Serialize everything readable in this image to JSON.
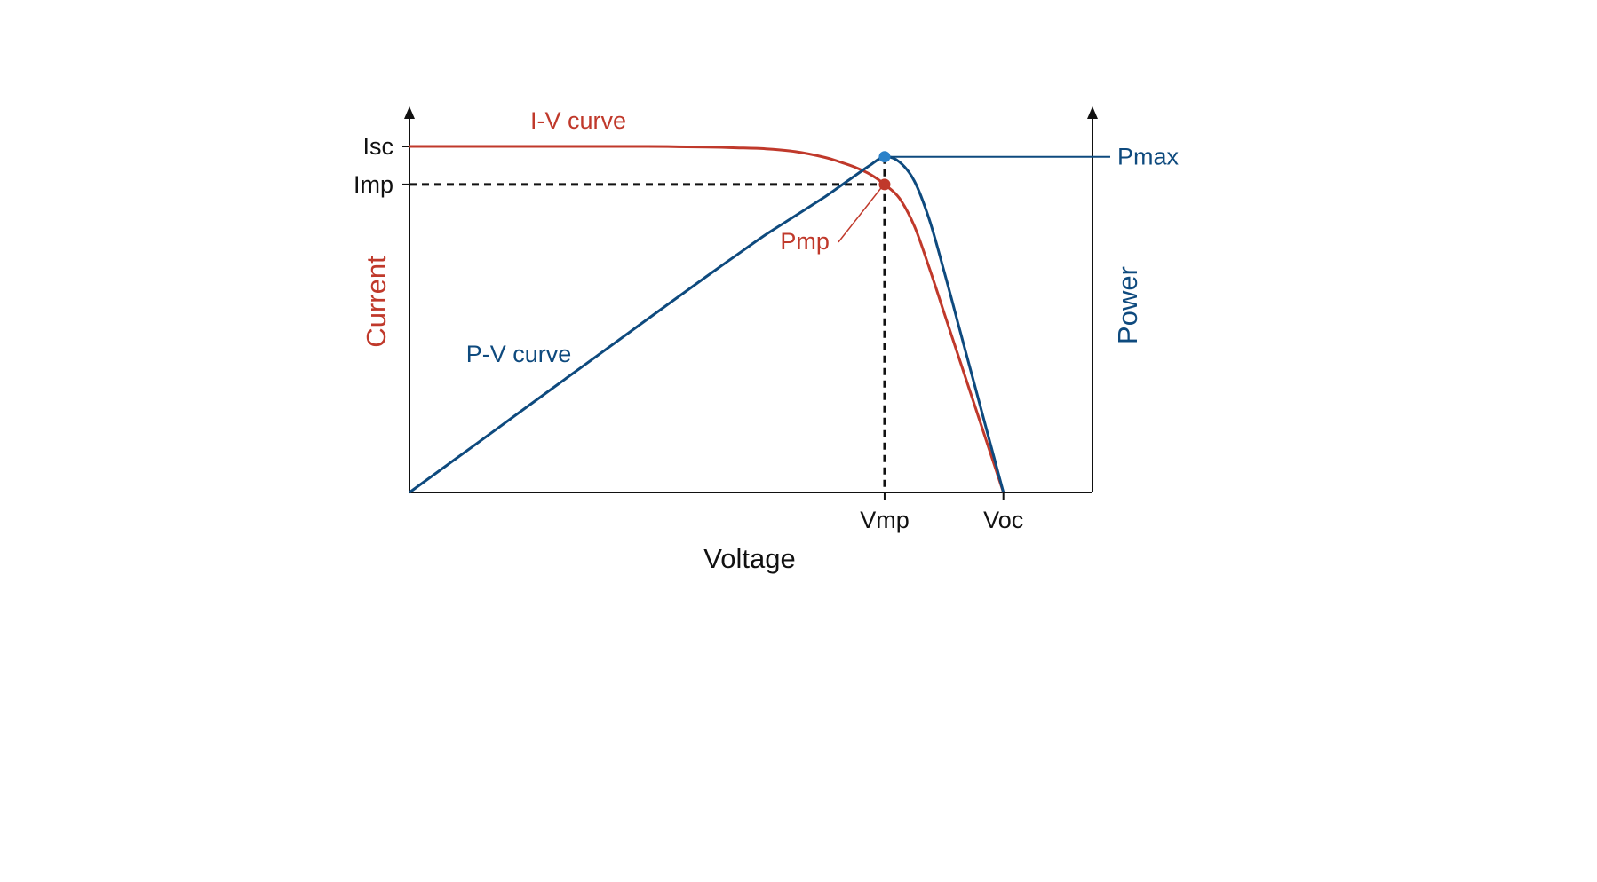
{
  "chart_data": {
    "type": "line",
    "title": "",
    "xlabel": "Voltage",
    "ylabel_left": "Current",
    "ylabel_right": "Power",
    "xlim": [
      0,
      1.15
    ],
    "ylim_current": [
      0,
      1.0
    ],
    "ylim_power": [
      0,
      1.0
    ],
    "grid": false,
    "legend": "none",
    "x_ticks": [
      {
        "label": "Vmp",
        "value": 0.8
      },
      {
        "label": "Voc",
        "value": 1.0
      }
    ],
    "y_ticks": [
      {
        "label": "Isc",
        "value": 1.0
      },
      {
        "label": "Imp",
        "value": 0.89
      }
    ],
    "series": [
      {
        "name": "I-V curve",
        "axis": "left",
        "color": "#c0392b",
        "x": [
          0,
          0.1,
          0.2,
          0.3,
          0.4,
          0.5,
          0.55,
          0.6,
          0.65,
          0.7,
          0.725,
          0.75,
          0.775,
          0.8,
          0.825,
          0.85,
          0.875,
          0.9,
          0.925,
          0.95,
          0.975,
          1.0
        ],
        "values": [
          1.0,
          1.0,
          1.0,
          1.0,
          1.0,
          0.998,
          0.996,
          0.993,
          0.985,
          0.968,
          0.955,
          0.94,
          0.92,
          0.89,
          0.85,
          0.77,
          0.65,
          0.52,
          0.39,
          0.26,
          0.13,
          0.0
        ]
      },
      {
        "name": "P-V curve",
        "axis": "right",
        "color": "#0e4a7e",
        "x": [
          0,
          0.1,
          0.2,
          0.3,
          0.4,
          0.5,
          0.55,
          0.6,
          0.65,
          0.7,
          0.725,
          0.75,
          0.775,
          0.8,
          0.825,
          0.85,
          0.875,
          0.9,
          0.925,
          0.95,
          0.975,
          1.0
        ],
        "values": [
          0.0,
          0.125,
          0.25,
          0.375,
          0.5,
          0.624,
          0.685,
          0.745,
          0.8,
          0.855,
          0.885,
          0.915,
          0.945,
          0.97,
          0.955,
          0.9,
          0.79,
          0.64,
          0.48,
          0.32,
          0.16,
          0.0
        ]
      }
    ],
    "annotations": [
      {
        "label": "Pmax",
        "point": [
          0.8,
          0.97
        ],
        "axis": "right",
        "color": "#0e4a7e"
      },
      {
        "label": "Pmp",
        "point": [
          0.8,
          0.89
        ],
        "axis": "left",
        "color": "#c0392b"
      }
    ]
  },
  "colors": {
    "current": "#c0392b",
    "power": "#0e4a7e",
    "pmax_marker": "#2c82c9",
    "axis": "#111111"
  }
}
